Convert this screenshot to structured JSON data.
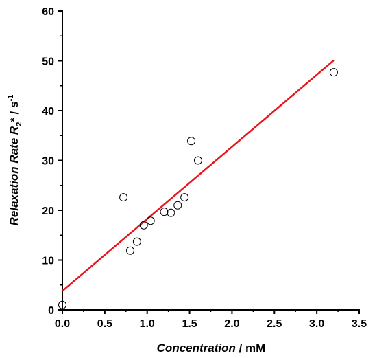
{
  "chart_data": {
    "type": "scatter",
    "xlabel_main": "Concentration",
    "xlabel_unit": " / mM",
    "ylabel_main": "Relaxation Rate",
    "ylabel_symbol": "R",
    "ylabel_sub": "2",
    "ylabel_star": "*",
    "ylabel_unit": " / s",
    "ylabel_exp": "-1",
    "xlim": [
      0,
      3.5
    ],
    "ylim": [
      0,
      60
    ],
    "xticks": [
      "0.0",
      "0.5",
      "1.0",
      "1.5",
      "2.0",
      "2.5",
      "3.0",
      "3.5"
    ],
    "yticks": [
      "0",
      "10",
      "20",
      "30",
      "40",
      "50",
      "60"
    ],
    "series": [
      {
        "x": [
          0.0,
          0.72,
          0.8,
          0.88,
          0.96,
          1.04,
          1.2,
          1.28,
          1.36,
          1.44,
          1.52,
          1.6,
          3.2
        ],
        "y": [
          1.0,
          22.6,
          11.9,
          13.7,
          17.0,
          17.9,
          19.7,
          19.5,
          21.0,
          22.6,
          33.9,
          30.0,
          47.7
        ]
      }
    ],
    "fit_line": {
      "x": [
        0.0,
        3.2
      ],
      "y": [
        3.8,
        50.1
      ],
      "color": "#e8141b"
    }
  }
}
